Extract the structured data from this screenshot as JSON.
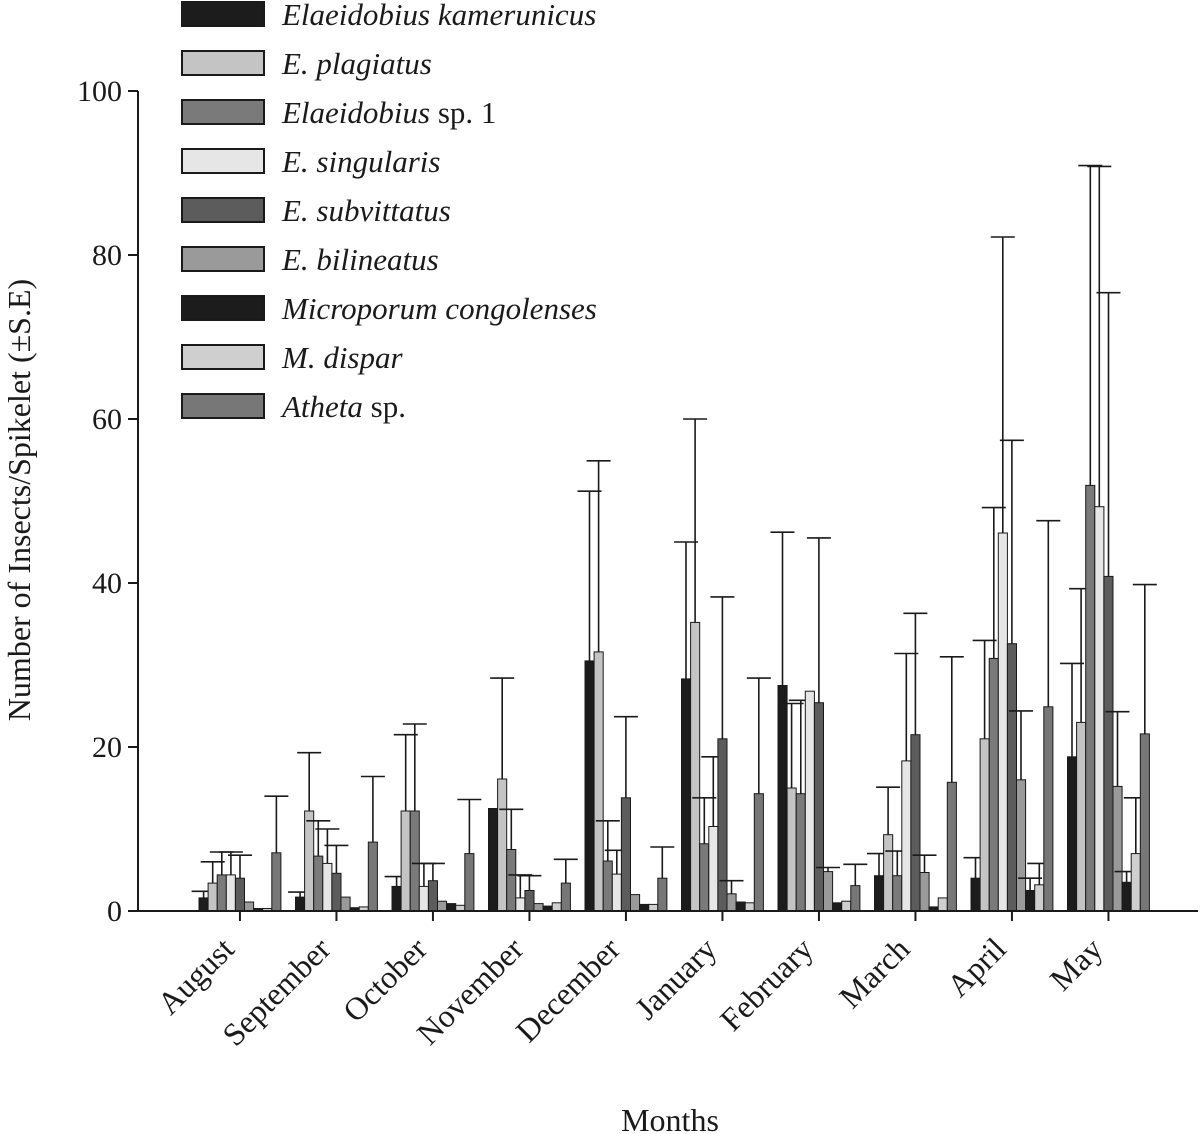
{
  "chart_data": {
    "type": "bar",
    "xlabel": "Months",
    "ylabel": "Number of Insects/Spikelet (±S.E)",
    "ylim": [
      0,
      100
    ],
    "yticks": [
      "0",
      "20",
      "40",
      "60",
      "80",
      "100"
    ],
    "ytick_values": [
      0,
      20,
      40,
      60,
      80,
      100
    ],
    "grid": false,
    "legend_position": "top-left",
    "categories": [
      "August",
      "September",
      "October",
      "November",
      "December",
      "January",
      "February",
      "March",
      "April",
      "May"
    ],
    "series": [
      {
        "name": "Elaeidobius kamerunicus",
        "legend_italic": "Elaeidobius kamerunicus",
        "legend_rest": "",
        "fill": "#1c1c1c",
        "values": [
          1.6,
          1.7,
          3.0,
          12.5,
          30.5,
          28.3,
          27.5,
          4.3,
          4.0,
          18.8
        ],
        "errors": [
          0.8,
          0.6,
          1.2,
          0.0,
          20.7,
          16.7,
          18.7,
          2.7,
          2.5,
          11.4
        ]
      },
      {
        "name": "E. plagiatus",
        "legend_italic": "E. plagiatus",
        "legend_rest": "",
        "fill": "#c4c4c4",
        "values": [
          3.4,
          12.2,
          12.2,
          16.1,
          31.6,
          35.2,
          15.0,
          9.3,
          21.0,
          23.0
        ],
        "errors": [
          2.6,
          7.1,
          9.3,
          12.3,
          23.3,
          24.8,
          10.3,
          5.8,
          12.0,
          16.3
        ]
      },
      {
        "name": "Elaeidobius sp. 1",
        "legend_italic": "Elaeidobius",
        "legend_rest": " sp. 1",
        "fill": "#7a7a7a",
        "values": [
          4.4,
          6.7,
          12.2,
          7.5,
          6.1,
          8.2,
          14.3,
          4.3,
          30.8,
          51.9
        ],
        "errors": [
          2.8,
          4.3,
          10.6,
          4.9,
          4.9,
          5.6,
          11.4,
          3.0,
          18.4,
          39.0
        ]
      },
      {
        "name": "E. singularis",
        "legend_italic": "E. singularis",
        "legend_rest": "",
        "fill": "#e6e6e6",
        "values": [
          4.4,
          5.8,
          3.0,
          1.6,
          4.5,
          10.3,
          26.8,
          18.3,
          46.1,
          49.3
        ],
        "errors": [
          2.8,
          4.2,
          2.8,
          2.8,
          2.9,
          8.5,
          0.0,
          13.1,
          36.1,
          41.5
        ]
      },
      {
        "name": "E. subvittatus",
        "legend_italic": "E. subvittatus",
        "legend_rest": "",
        "fill": "#5c5c5c",
        "values": [
          4.0,
          4.6,
          3.7,
          2.5,
          13.8,
          21.0,
          25.4,
          21.5,
          32.6,
          40.8
        ],
        "errors": [
          2.8,
          3.4,
          2.1,
          1.8,
          9.9,
          17.3,
          20.1,
          14.8,
          24.8,
          34.6
        ]
      },
      {
        "name": "E. bilineatus",
        "legend_italic": "E. bilineatus",
        "legend_rest": "",
        "fill": "#9a9a9a",
        "values": [
          1.1,
          1.7,
          1.2,
          0.9,
          2.0,
          2.1,
          4.8,
          4.7,
          16.0,
          15.2
        ],
        "errors": [
          0.0,
          0.0,
          0.0,
          0.0,
          0.0,
          1.6,
          0.5,
          2.1,
          8.4,
          9.1
        ]
      },
      {
        "name": "Microporum congolenses",
        "legend_italic": "Microporum congolenses",
        "legend_rest": "",
        "fill": "#1c1c1c",
        "values": [
          0.3,
          0.4,
          0.9,
          0.6,
          0.8,
          1.1,
          1.0,
          0.5,
          2.5,
          3.5
        ],
        "errors": [
          0.0,
          0.0,
          0.0,
          0.0,
          0.0,
          0.0,
          0.0,
          0.0,
          1.5,
          1.3
        ]
      },
      {
        "name": "M. dispar",
        "legend_italic": "M. dispar",
        "legend_rest": "",
        "fill": "#cfcfcf",
        "values": [
          0.3,
          0.5,
          0.7,
          1.0,
          0.8,
          1.0,
          1.2,
          1.6,
          3.2,
          7.0
        ],
        "errors": [
          0.0,
          0.0,
          0.0,
          0.0,
          0.0,
          0.0,
          0.0,
          0.0,
          2.6,
          6.8
        ]
      },
      {
        "name": "Atheta sp.",
        "legend_italic": "Atheta",
        "legend_rest": " sp.",
        "fill": "#777777",
        "values": [
          7.1,
          8.4,
          7.0,
          3.4,
          4.0,
          14.3,
          3.1,
          15.7,
          24.9,
          21.6
        ],
        "errors": [
          6.9,
          8.0,
          6.6,
          2.9,
          3.8,
          14.1,
          2.6,
          15.3,
          22.7,
          18.2
        ]
      }
    ]
  }
}
